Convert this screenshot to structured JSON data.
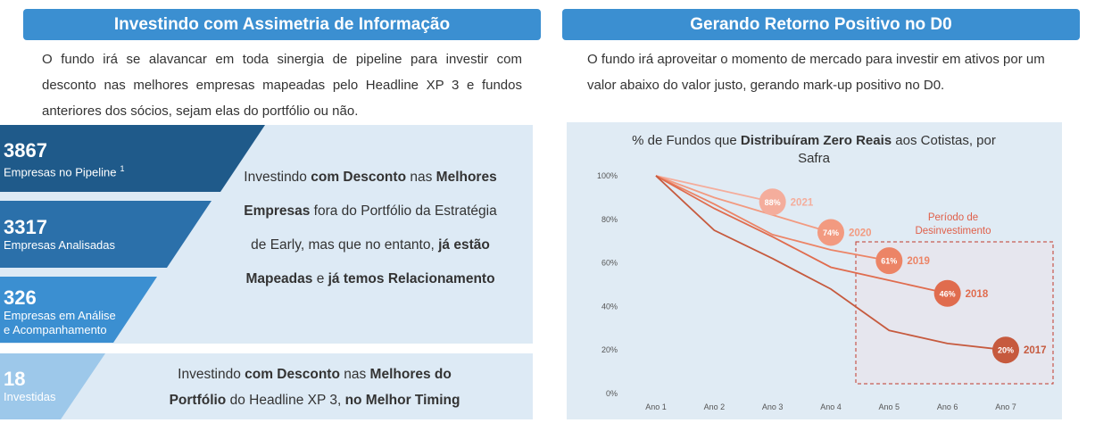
{
  "left": {
    "header": "Investindo com Assimetria de Informação",
    "paragraph": "O fundo irá se alavancar em toda sinergia de pipeline para investir com desconto nas melhores empresas mapeadas pelo Headline XP 3 e fundos anteriores dos sócios, sejam elas do portfólio ou não.",
    "funnel": [
      {
        "number": "3867",
        "label": [
          "Empresas no Pipeline"
        ],
        "sup": "1"
      },
      {
        "number": "3317",
        "label": [
          "Empresas Analisadas"
        ]
      },
      {
        "number": "326",
        "label": [
          "Empresas em Análise",
          "e Acompanhamento"
        ]
      },
      {
        "number": "18",
        "label": [
          "Investidas"
        ]
      }
    ],
    "box1": [
      [
        {
          "text": "Investindo ",
          "bold": false
        },
        {
          "text": "com Desconto",
          "bold": true
        },
        {
          "text": " nas ",
          "bold": false
        },
        {
          "text": "Melhores",
          "bold": true
        }
      ],
      [
        {
          "text": "Empresas",
          "bold": true
        },
        {
          "text": " fora do Portfólio da Estratégia",
          "bold": false
        }
      ],
      [
        {
          "text": "de Early, mas que no entanto, ",
          "bold": false
        },
        {
          "text": "já estão",
          "bold": true
        }
      ],
      [
        {
          "text": "Mapeadas",
          "bold": true
        },
        {
          "text": " e ",
          "bold": false
        },
        {
          "text": "já temos Relacionamento",
          "bold": true
        }
      ]
    ],
    "box2": [
      [
        {
          "text": "Investindo ",
          "bold": false
        },
        {
          "text": "com Desconto",
          "bold": true
        },
        {
          "text": " nas ",
          "bold": false
        },
        {
          "text": "Melhores do",
          "bold": true
        }
      ],
      [
        {
          "text": "Portfólio",
          "bold": true
        },
        {
          "text": " do Headline XP 3, ",
          "bold": false
        },
        {
          "text": "no Melhor Timing",
          "bold": true
        }
      ]
    ]
  },
  "right": {
    "header": "Gerando Retorno Positivo no D0",
    "paragraph": "O fundo irá aproveitar o momento de mercado para investir em ativos por um valor abaixo do valor justo, gerando mark-up positivo no D0."
  },
  "chart_data": {
    "type": "line",
    "title": [
      {
        "text": "% de Fundos que ",
        "bold": false
      },
      {
        "text": "Distribuíram Zero Reais",
        "bold": true
      },
      {
        "text": " aos Cotistas, por Safra",
        "bold": false
      }
    ],
    "categories": [
      "Ano 1",
      "Ano 2",
      "Ano 3",
      "Ano 4",
      "Ano 5",
      "Ano 6",
      "Ano 7"
    ],
    "ylim": [
      0,
      100
    ],
    "yticks": [
      {
        "value": 0,
        "label": "0%"
      },
      {
        "value": 20,
        "label": "20%"
      },
      {
        "value": 40,
        "label": "40%"
      },
      {
        "value": 60,
        "label": "60%"
      },
      {
        "value": 80,
        "label": "80%"
      },
      {
        "value": 100,
        "label": "100%"
      }
    ],
    "annotation": "Período de Desinvestimento",
    "series": [
      {
        "name": "2021",
        "color": "#f4ad9c",
        "values": [
          100,
          94,
          88,
          null,
          null,
          null,
          null
        ],
        "value_labels": [
          null,
          null,
          "88%",
          null,
          null,
          null,
          null
        ]
      },
      {
        "name": "2020",
        "color": "#f29a80",
        "values": [
          100,
          90,
          82,
          74,
          null,
          null,
          null
        ],
        "value_labels": [
          null,
          null,
          null,
          "74%",
          null,
          null,
          null
        ]
      },
      {
        "name": "2019",
        "color": "#ec8466",
        "values": [
          100,
          87,
          73,
          66,
          61,
          null,
          null
        ],
        "value_labels": [
          null,
          null,
          null,
          null,
          "61%",
          null,
          null
        ]
      },
      {
        "name": "2018",
        "color": "#e06c4e",
        "values": [
          100,
          85,
          72,
          58,
          52,
          46,
          null
        ],
        "value_labels": [
          null,
          null,
          null,
          null,
          null,
          "46%",
          null
        ]
      },
      {
        "name": "2017",
        "color": "#c65a3e",
        "values": [
          100,
          75,
          62,
          48,
          29,
          23,
          20
        ],
        "value_labels": [
          null,
          null,
          null,
          null,
          null,
          null,
          "20%"
        ]
      }
    ]
  }
}
